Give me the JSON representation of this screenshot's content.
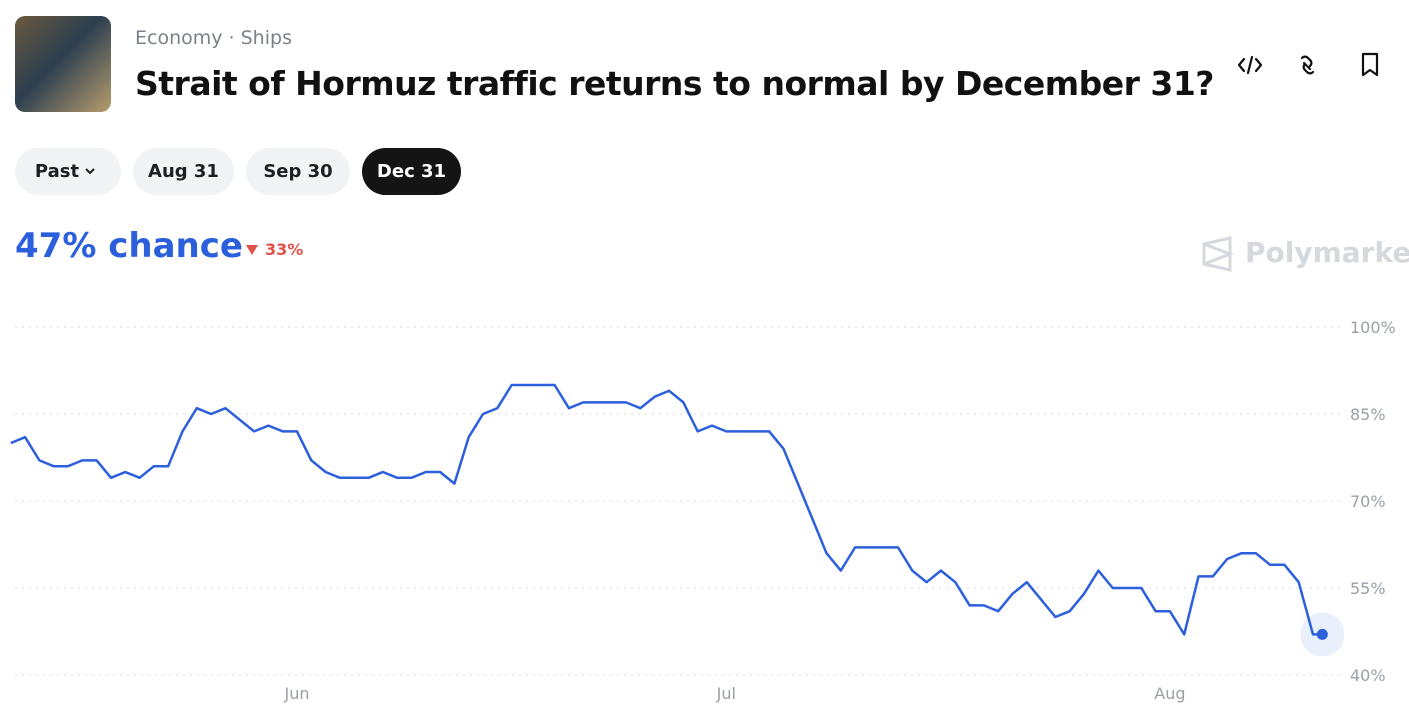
{
  "header": {
    "breadcrumb": [
      "Economy",
      "Ships"
    ],
    "title": "Strait of Hormuz traffic returns to normal by December 31?"
  },
  "tabs": [
    "Past",
    "Aug 31",
    "Sep 30",
    "Dec 31"
  ],
  "summary": {
    "chance": "47% chance",
    "change": "33%"
  },
  "brand": "Polymarket",
  "chart_data": {
    "type": "line",
    "color": "#2c5fdc",
    "grid": true,
    "categories": [
      null,
      null,
      null,
      null,
      null,
      null,
      null,
      null,
      null,
      null,
      null,
      null,
      null,
      null,
      null,
      null,
      null,
      null,
      null,
      null,
      "Jun",
      null,
      null,
      null,
      null,
      null,
      null,
      null,
      null,
      null,
      null,
      null,
      null,
      null,
      null,
      null,
      null,
      null,
      null,
      null,
      null,
      null,
      null,
      null,
      null,
      null,
      null,
      null,
      null,
      null,
      "Jul",
      null,
      null,
      null,
      null,
      null,
      null,
      null,
      null,
      null,
      null,
      null,
      null,
      null,
      null,
      null,
      null,
      null,
      null,
      null,
      null,
      null,
      null,
      null,
      null,
      null,
      null,
      null,
      null,
      null,
      null,
      "Aug",
      null,
      null,
      null,
      null,
      null,
      null,
      null,
      null,
      null,
      null,
      null
    ],
    "values": [
      80,
      81,
      77,
      76,
      76,
      77,
      77,
      74,
      75,
      74,
      76,
      76,
      82,
      86,
      85,
      86,
      84,
      82,
      83,
      82,
      82,
      77,
      75,
      74,
      74,
      74,
      75,
      74,
      74,
      75,
      75,
      73,
      81,
      85,
      86,
      90,
      90,
      90,
      90,
      86,
      87,
      87,
      87,
      87,
      86,
      88,
      89,
      87,
      82,
      83,
      82,
      82,
      82,
      82,
      79,
      73,
      67,
      61,
      58,
      62,
      62,
      62,
      62,
      58,
      56,
      58,
      56,
      52,
      52,
      51,
      54,
      56,
      53,
      50,
      51,
      54,
      58,
      55,
      55,
      55,
      51,
      51,
      47,
      57,
      57,
      60,
      61,
      61,
      59,
      59,
      56,
      47,
      47
    ],
    "ylim": [
      40,
      100
    ],
    "yticks": [
      {
        "value": 40,
        "label": "40%"
      },
      {
        "value": 55,
        "label": "55%"
      },
      {
        "value": 70,
        "label": "70%"
      },
      {
        "value": 85,
        "label": "85%"
      },
      {
        "value": 100,
        "label": "100%"
      }
    ]
  }
}
